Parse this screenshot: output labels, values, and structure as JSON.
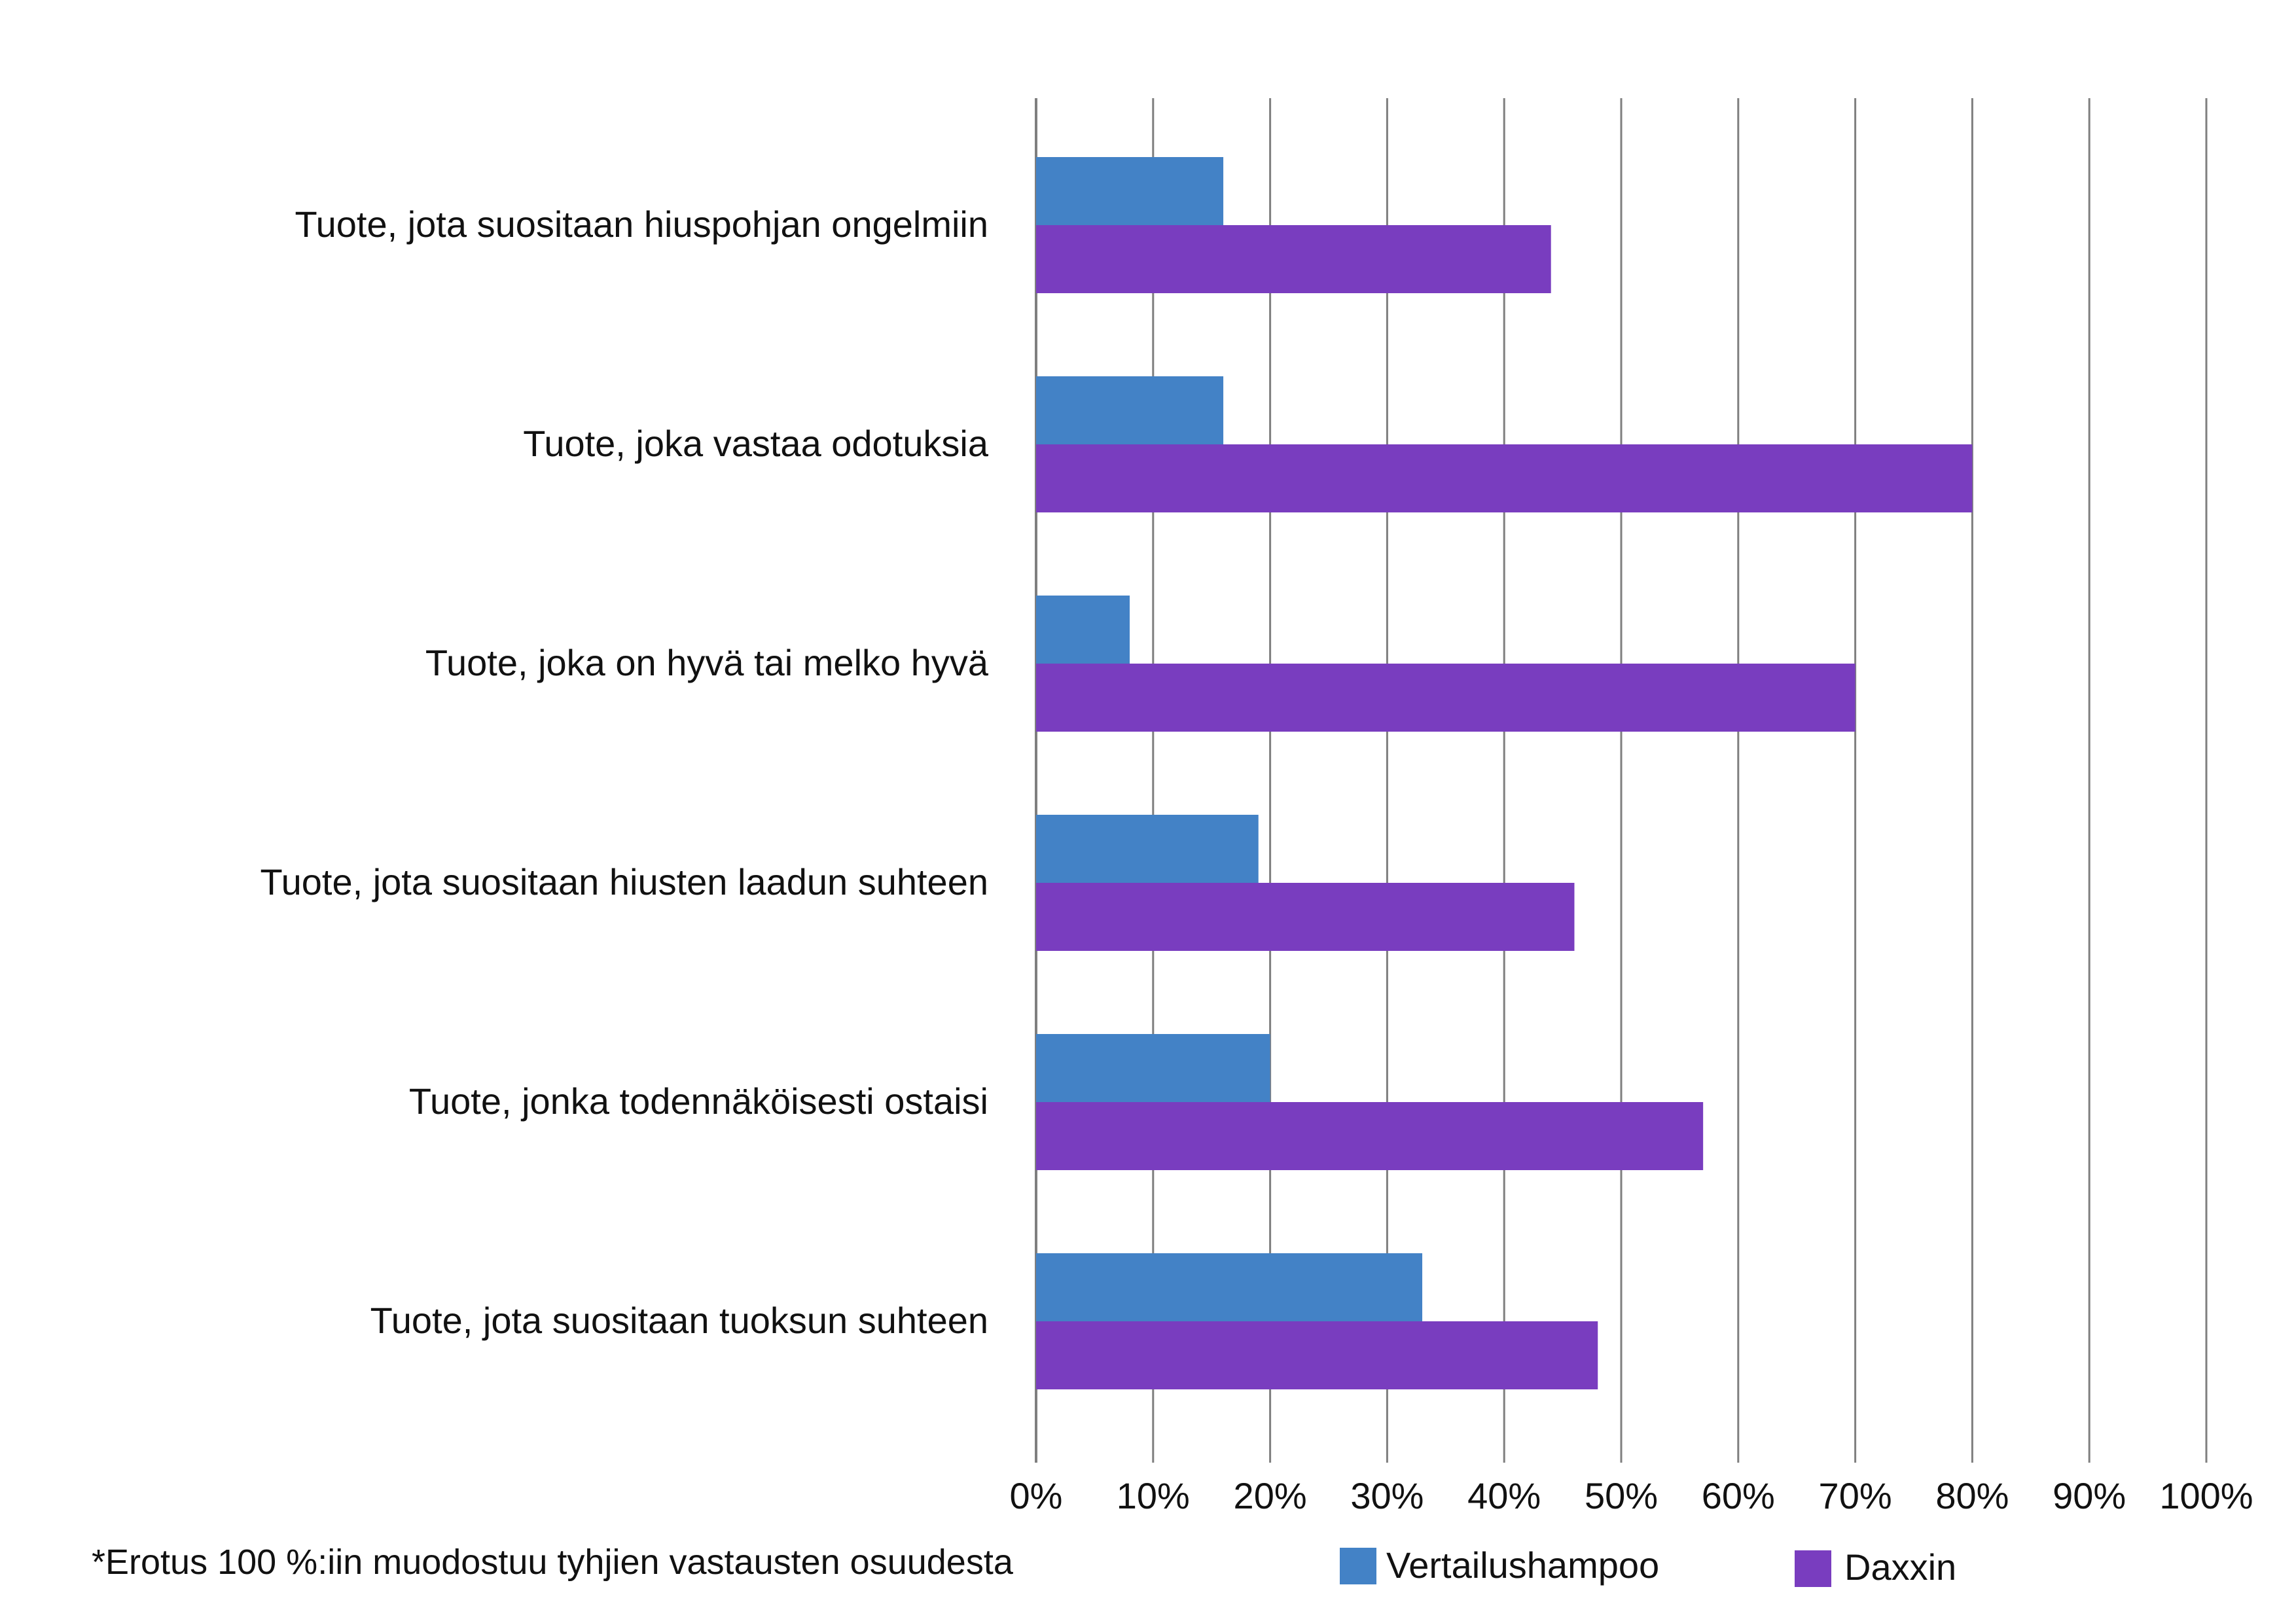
{
  "chart_data": {
    "type": "bar",
    "orientation": "horizontal",
    "categories": [
      "Tuote, jota suositaan hiuspohjan ongelmiin",
      "Tuote, joka vastaa odotuksia",
      "Tuote, joka on hyvä tai melko hyvä",
      "Tuote, jota suositaan hiusten laadun suhteen",
      "Tuote, jonka todennäköisesti ostaisi",
      "Tuote, jota suositaan tuoksun suhteen"
    ],
    "series": [
      {
        "name": "Vertailushampoo",
        "color": "#4382c6",
        "values": [
          16,
          16,
          8,
          19,
          20,
          33
        ]
      },
      {
        "name": "Daxxin",
        "color": "#793dbf",
        "values": [
          44,
          80,
          70,
          46,
          57,
          48
        ]
      }
    ],
    "xlim": [
      0,
      100
    ],
    "x_ticks": [
      "0%",
      "10%",
      "20%",
      "30%",
      "40%",
      "50%",
      "60%",
      "70%",
      "80%",
      "90%",
      "100%"
    ],
    "grid": true,
    "gridline_color": "#7f7f7f",
    "legend_position": "bottom",
    "footnote": "*Erotus 100 %:iin muodostuu tyhjien vastausten osuudesta"
  }
}
